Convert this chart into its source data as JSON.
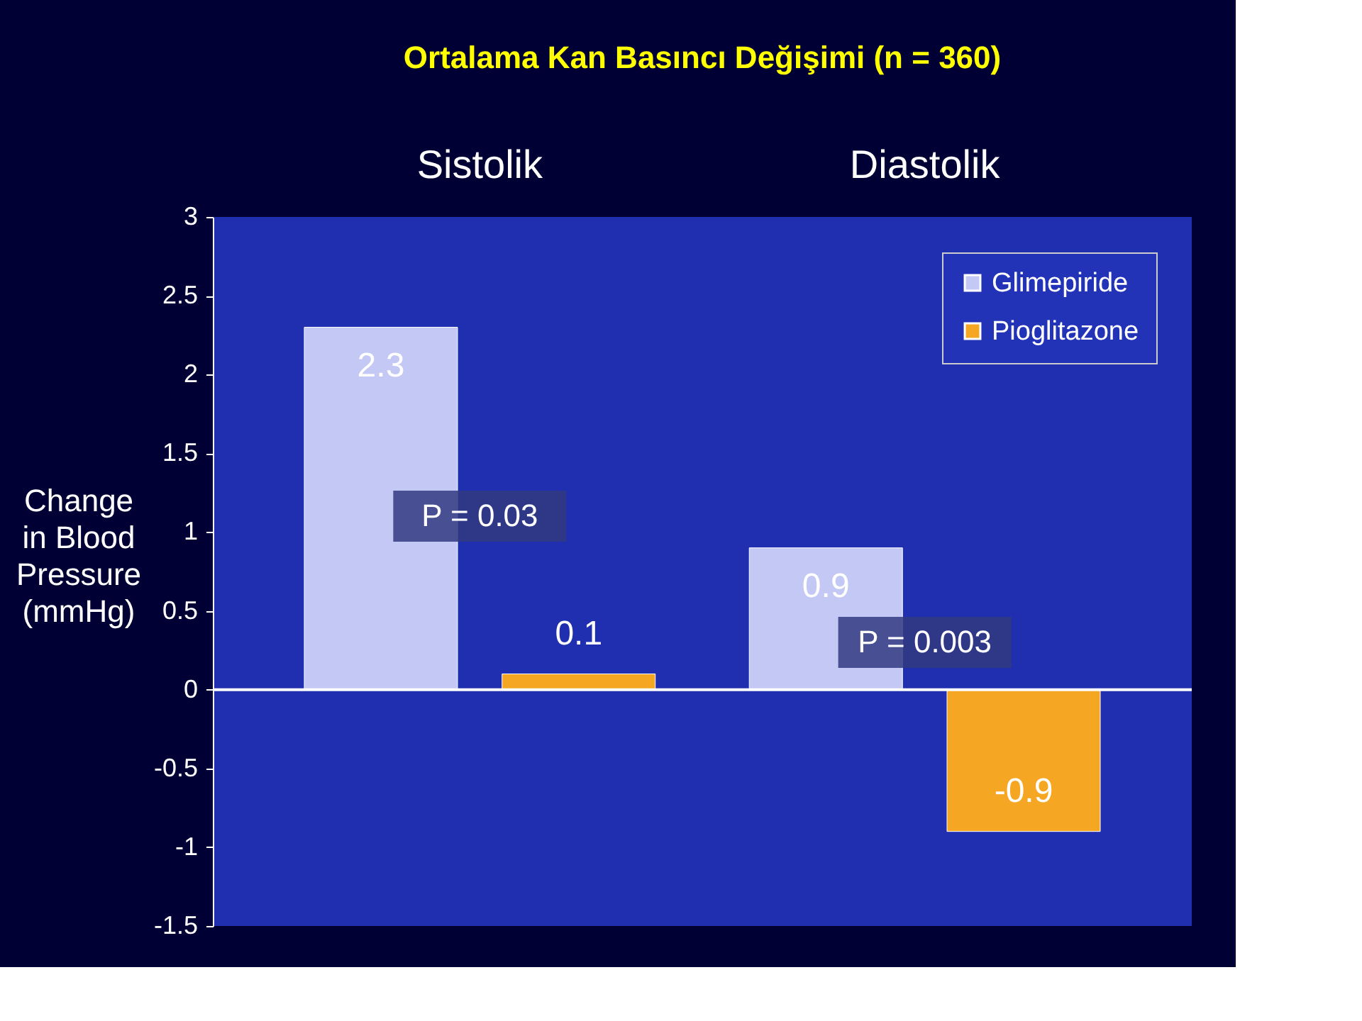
{
  "chart_data": {
    "type": "bar",
    "title": "Ortalama Kan Basıncı Değişimi (n = 360)",
    "ylabel": "Change in Blood Pressure (mmHg)",
    "categories": [
      "Sistolik",
      "Diastolik"
    ],
    "series": [
      {
        "name": "Glimepiride",
        "color": "#c4c8f4",
        "values": [
          2.3,
          0.9
        ]
      },
      {
        "name": "Pioglitazone",
        "color": "#f5a623",
        "values": [
          0.1,
          -0.9
        ]
      }
    ],
    "ylim": [
      -1.5,
      3
    ],
    "yticks": [
      -1.5,
      -1,
      -0.5,
      0,
      0.5,
      1,
      1.5,
      2,
      2.5,
      3
    ],
    "ref_lines": [
      {
        "axis": "y",
        "value": 0,
        "color": "#ffffff"
      }
    ],
    "data_labels": true,
    "grid": false,
    "legend": "top right",
    "annotations": [
      "P = 0.03",
      "P = 0.003"
    ]
  }
}
